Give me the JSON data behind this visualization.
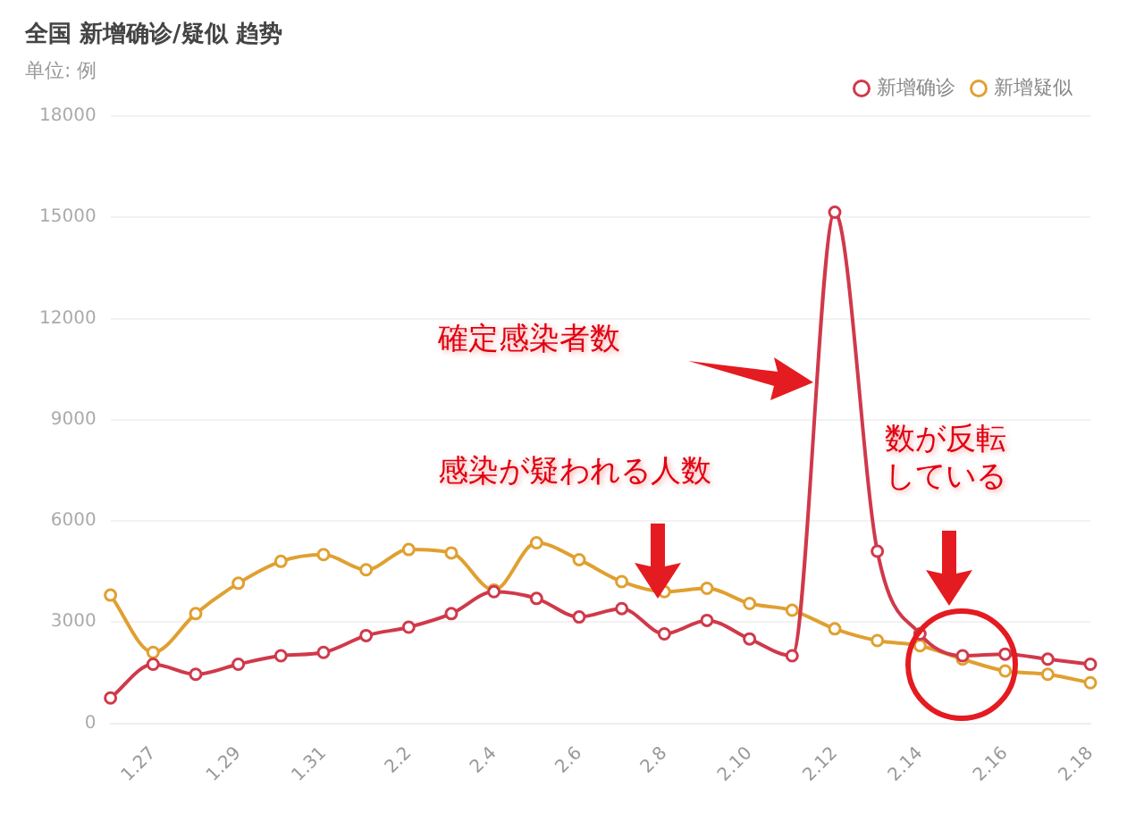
{
  "chart_data": {
    "type": "line",
    "title": "全国 新增确诊/疑似 趋势",
    "subtitle": "单位: 例",
    "categories": [
      null,
      "1.27",
      null,
      "1.29",
      null,
      "1.31",
      null,
      "2.2",
      null,
      "2.4",
      null,
      "2.6",
      null,
      "2.8",
      null,
      "2.10",
      null,
      "2.12",
      null,
      "2.14",
      null,
      "2.16",
      null,
      "2.18"
    ],
    "series": [
      {
        "name": "新增确诊",
        "color": "#d0394a",
        "values": [
          750,
          1750,
          1450,
          1750,
          2000,
          2100,
          2600,
          2850,
          3250,
          3900,
          3700,
          3150,
          3400,
          2650,
          3050,
          2500,
          2000,
          15150,
          5100,
          2650,
          2000,
          2050,
          1900,
          1750
        ]
      },
      {
        "name": "新增疑似",
        "color": "#e0a030",
        "values": [
          3800,
          2100,
          3250,
          4150,
          4800,
          5000,
          4550,
          5150,
          5050,
          3950,
          5350,
          4850,
          4200,
          3900,
          4000,
          3550,
          3350,
          2800,
          2450,
          2300,
          1900,
          1550,
          1450,
          1200
        ]
      }
    ],
    "ylim": [
      0,
      18000
    ],
    "yticks": [
      0,
      3000,
      6000,
      9000,
      12000,
      15000,
      18000
    ],
    "grid": "y",
    "legend": "top right",
    "marker": "circle",
    "line_style": "solid",
    "annotations": [
      "確定感染者数",
      "感染が疑われる人数",
      "数が反転している"
    ]
  }
}
